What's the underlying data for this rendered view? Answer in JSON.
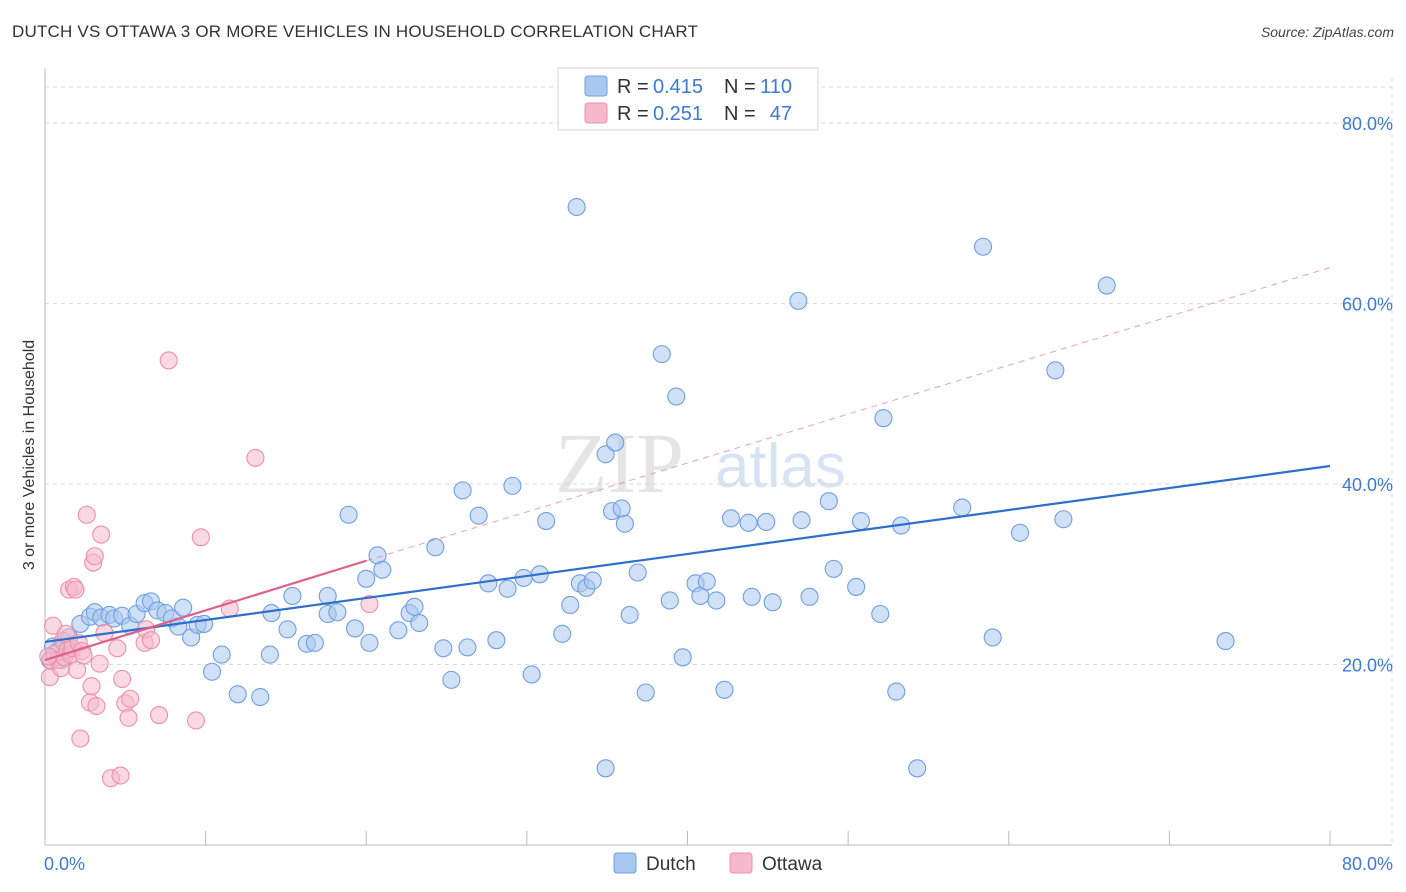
{
  "title": "DUTCH VS OTTAWA 3 OR MORE VEHICLES IN HOUSEHOLD CORRELATION CHART",
  "source": "Source: ZipAtlas.com",
  "watermark": {
    "zip": "ZIP",
    "atlas": "atlas"
  },
  "colors": {
    "dutch_fill": "#a9c8f0",
    "dutch_stroke": "#6f9fe0",
    "dutch_line": "#2f6fcc",
    "ottawa_fill": "#f6b9cb",
    "ottawa_stroke": "#ee8fab",
    "ottawa_line": "#e0608c",
    "tick_text": "#3d7ad6",
    "grid": "#d8d8d8"
  },
  "legend": {
    "row1": {
      "r_label": "R = ",
      "r_value": "0.415",
      "n_label": "N = ",
      "n_value": "110"
    },
    "row2": {
      "r_label": "R = ",
      "r_value": "0.251",
      "n_label": "N = ",
      "n_value": "47"
    }
  },
  "bottom_legend": {
    "dutch": "Dutch",
    "ottawa": "Ottawa"
  },
  "chart_data": {
    "type": "scatter",
    "title": "DUTCH VS OTTAWA 3 OR MORE VEHICLES IN HOUSEHOLD CORRELATION CHART",
    "xlabel": "",
    "ylabel": "3 or more Vehicles in Household",
    "xlim": [
      0,
      80
    ],
    "ylim": [
      0,
      85
    ],
    "x_tick_labels": [
      "0.0%",
      "80.0%"
    ],
    "y_ticks": [
      20,
      40,
      60,
      80
    ],
    "y_tick_labels": [
      "20.0%",
      "40.0%",
      "60.0%",
      "80.0%"
    ],
    "grid": true,
    "legend_position": "top-center",
    "series": [
      {
        "name": "Dutch",
        "R": 0.415,
        "N": 110,
        "trend": {
          "x0": 0,
          "y0": 22.5,
          "x1": 80,
          "y1": 42.0
        },
        "points": [
          [
            0.3,
            20.5
          ],
          [
            0.5,
            22.0
          ],
          [
            0.8,
            21.5
          ],
          [
            1.0,
            20.5
          ],
          [
            1.2,
            22.5
          ],
          [
            1.5,
            23.0
          ],
          [
            1.7,
            21.8
          ],
          [
            2.2,
            24.5
          ],
          [
            2.8,
            25.3
          ],
          [
            3.1,
            25.8
          ],
          [
            3.5,
            25.2
          ],
          [
            4.0,
            25.5
          ],
          [
            4.3,
            25.1
          ],
          [
            4.8,
            25.4
          ],
          [
            5.3,
            24.3
          ],
          [
            5.7,
            25.6
          ],
          [
            6.2,
            26.8
          ],
          [
            6.6,
            27.0
          ],
          [
            7.0,
            26.0
          ],
          [
            7.5,
            25.7
          ],
          [
            7.9,
            25.1
          ],
          [
            8.3,
            24.2
          ],
          [
            8.6,
            26.3
          ],
          [
            9.1,
            23.0
          ],
          [
            9.5,
            24.4
          ],
          [
            9.9,
            24.5
          ],
          [
            10.4,
            19.2
          ],
          [
            11.0,
            21.1
          ],
          [
            12.0,
            16.7
          ],
          [
            13.4,
            16.4
          ],
          [
            14.0,
            21.1
          ],
          [
            14.1,
            25.7
          ],
          [
            15.1,
            23.9
          ],
          [
            15.4,
            27.6
          ],
          [
            16.3,
            22.3
          ],
          [
            16.8,
            22.4
          ],
          [
            17.6,
            25.6
          ],
          [
            17.6,
            27.6
          ],
          [
            18.2,
            25.8
          ],
          [
            18.9,
            36.6
          ],
          [
            19.3,
            24.0
          ],
          [
            20.0,
            29.5
          ],
          [
            20.2,
            22.4
          ],
          [
            20.7,
            32.1
          ],
          [
            21.0,
            30.5
          ],
          [
            22.0,
            23.8
          ],
          [
            22.7,
            25.7
          ],
          [
            23.0,
            26.4
          ],
          [
            23.3,
            24.6
          ],
          [
            24.3,
            33.0
          ],
          [
            24.8,
            21.8
          ],
          [
            25.3,
            18.3
          ],
          [
            26.0,
            39.3
          ],
          [
            26.3,
            21.9
          ],
          [
            27.0,
            36.5
          ],
          [
            27.6,
            29.0
          ],
          [
            28.1,
            22.7
          ],
          [
            28.8,
            28.4
          ],
          [
            29.1,
            39.8
          ],
          [
            29.8,
            29.6
          ],
          [
            30.3,
            18.9
          ],
          [
            30.8,
            30.0
          ],
          [
            31.2,
            35.9
          ],
          [
            32.2,
            23.4
          ],
          [
            32.7,
            26.6
          ],
          [
            33.1,
            70.7
          ],
          [
            33.3,
            29.0
          ],
          [
            33.7,
            28.5
          ],
          [
            34.1,
            29.3
          ],
          [
            34.9,
            43.3
          ],
          [
            34.9,
            8.5
          ],
          [
            35.3,
            37.0
          ],
          [
            35.5,
            44.6
          ],
          [
            35.9,
            37.3
          ],
          [
            36.1,
            35.6
          ],
          [
            36.4,
            25.5
          ],
          [
            36.9,
            30.2
          ],
          [
            37.4,
            16.9
          ],
          [
            38.4,
            54.4
          ],
          [
            38.9,
            27.1
          ],
          [
            39.3,
            49.7
          ],
          [
            39.7,
            20.8
          ],
          [
            40.5,
            29.0
          ],
          [
            40.8,
            27.6
          ],
          [
            41.2,
            29.2
          ],
          [
            41.8,
            27.1
          ],
          [
            42.3,
            17.2
          ],
          [
            42.7,
            36.2
          ],
          [
            43.8,
            35.7
          ],
          [
            44.0,
            27.5
          ],
          [
            44.9,
            35.8
          ],
          [
            45.3,
            26.9
          ],
          [
            46.9,
            60.3
          ],
          [
            47.1,
            36.0
          ],
          [
            47.6,
            27.5
          ],
          [
            48.8,
            38.1
          ],
          [
            49.1,
            30.6
          ],
          [
            50.5,
            28.6
          ],
          [
            50.8,
            35.9
          ],
          [
            52.0,
            25.6
          ],
          [
            52.2,
            47.3
          ],
          [
            53.0,
            17.0
          ],
          [
            53.3,
            35.4
          ],
          [
            54.3,
            8.5
          ],
          [
            57.1,
            37.4
          ],
          [
            58.4,
            66.3
          ],
          [
            59.0,
            23.0
          ],
          [
            60.7,
            34.6
          ],
          [
            62.9,
            52.6
          ],
          [
            63.4,
            36.1
          ],
          [
            66.1,
            62.0
          ],
          [
            73.5,
            22.6
          ]
        ]
      },
      {
        "name": "Ottawa",
        "R": 0.251,
        "N": 47,
        "trend": {
          "x0": 0,
          "y0": 20.5,
          "x1": 20.0,
          "y1": 31.5,
          "extended_to": {
            "x": 80,
            "y": 64.0
          }
        },
        "points": [
          [
            0.3,
            18.6
          ],
          [
            0.4,
            20.4
          ],
          [
            0.5,
            24.3
          ],
          [
            0.6,
            21.2
          ],
          [
            0.8,
            20.5
          ],
          [
            1.0,
            19.6
          ],
          [
            1.1,
            22.6
          ],
          [
            1.2,
            20.8
          ],
          [
            1.3,
            23.4
          ],
          [
            1.4,
            21.6
          ],
          [
            1.5,
            28.3
          ],
          [
            1.6,
            21.1
          ],
          [
            1.7,
            21.8
          ],
          [
            1.8,
            28.6
          ],
          [
            1.9,
            28.3
          ],
          [
            2.0,
            19.4
          ],
          [
            2.1,
            22.4
          ],
          [
            2.2,
            11.8
          ],
          [
            2.3,
            21.5
          ],
          [
            2.4,
            21.0
          ],
          [
            2.6,
            36.6
          ],
          [
            2.8,
            15.8
          ],
          [
            2.9,
            17.6
          ],
          [
            3.0,
            31.3
          ],
          [
            3.1,
            32.0
          ],
          [
            3.2,
            15.4
          ],
          [
            3.4,
            20.1
          ],
          [
            3.5,
            34.4
          ],
          [
            3.7,
            23.5
          ],
          [
            4.1,
            7.4
          ],
          [
            4.5,
            21.8
          ],
          [
            4.7,
            7.7
          ],
          [
            4.8,
            18.4
          ],
          [
            5.0,
            15.7
          ],
          [
            5.2,
            14.1
          ],
          [
            5.3,
            16.2
          ],
          [
            6.2,
            22.4
          ],
          [
            6.3,
            23.9
          ],
          [
            6.6,
            22.7
          ],
          [
            7.1,
            14.4
          ],
          [
            7.7,
            53.7
          ],
          [
            9.4,
            13.8
          ],
          [
            9.7,
            34.1
          ],
          [
            11.5,
            26.2
          ],
          [
            13.1,
            42.9
          ],
          [
            20.2,
            26.7
          ],
          [
            0.2,
            20.9
          ]
        ]
      }
    ]
  }
}
